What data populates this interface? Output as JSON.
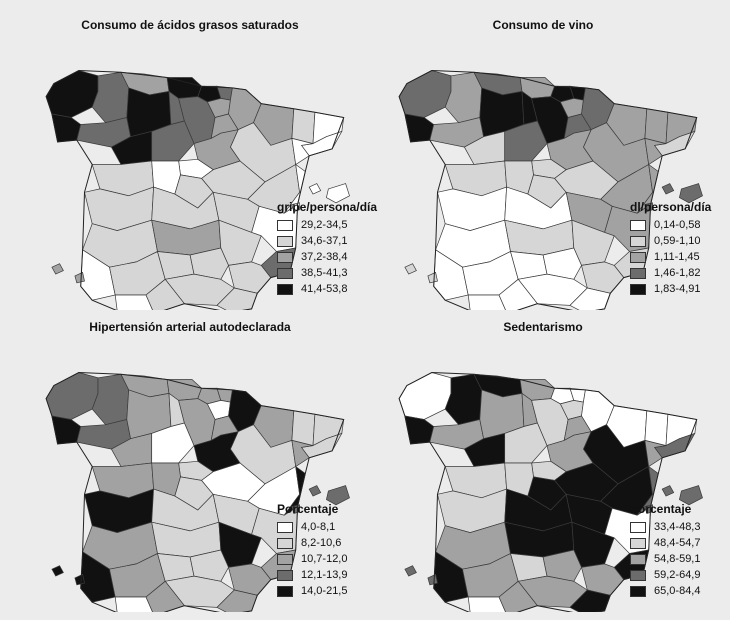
{
  "class_colors": [
    "#ffffff",
    "#d6d6d6",
    "#a2a2a2",
    "#6c6c6c",
    "#111111"
  ],
  "maps": [
    {
      "title": "Consumo de ácidos grasos saturados",
      "legend_title": "gripe/persona/día",
      "legend": [
        "29,2-34,5",
        "34,6-37,1",
        "37,2-38,4",
        "38,5-41,3",
        "41,4-53,8"
      ],
      "classes": {
        "coruna": 4,
        "lugo": 3,
        "asturias": 2,
        "cantabria": 4,
        "bizkaia": 4,
        "gipuzkoa": 3,
        "navarra": 2,
        "huesca": 2,
        "girona": 0,
        "lleida": 1,
        "barcelona": 0,
        "pontevedra": 4,
        "ourense": 3,
        "leon": 4,
        "palencia": 3,
        "burgos": 3,
        "alava": 2,
        "larioja": 2,
        "zaragoza": 1,
        "tarragona": 0,
        "zamora": 4,
        "valladolid": 3,
        "soria": 2,
        "salamanca": 1,
        "segovia": 0,
        "avila": 0,
        "madrid": 1,
        "guadalajara": 1,
        "teruel": 1,
        "castellon": 0,
        "caceres": 1,
        "toledo": 1,
        "cuenca": 1,
        "valencia": 0,
        "badajoz": 1,
        "ciudadreal": 2,
        "albacete": 1,
        "alicante": 3,
        "huelva": 0,
        "sevilla": 1,
        "cordoba": 1,
        "jaen": 1,
        "murcia": 1,
        "granada": 1,
        "almeria": 1,
        "cadiz": 0,
        "malaga": 1,
        "baleares": 0,
        "canarias": 2
      }
    },
    {
      "title": "Consumo de vino",
      "legend_title": "dl/persona/día",
      "legend": [
        "0,14-0,58",
        "0,59-1,10",
        "1,11-1,45",
        "1,46-1,82",
        "1,83-4,91"
      ],
      "classes": {
        "coruna": 3,
        "lugo": 2,
        "asturias": 3,
        "cantabria": 2,
        "bizkaia": 4,
        "gipuzkoa": 4,
        "navarra": 3,
        "huesca": 2,
        "girona": 2,
        "lleida": 2,
        "barcelona": 1,
        "pontevedra": 4,
        "ourense": 2,
        "leon": 4,
        "palencia": 4,
        "burgos": 4,
        "alava": 2,
        "larioja": 3,
        "zaragoza": 2,
        "tarragona": 2,
        "zamora": 1,
        "valladolid": 3,
        "soria": 2,
        "salamanca": 1,
        "segovia": 1,
        "avila": 1,
        "madrid": 1,
        "guadalajara": 1,
        "teruel": 2,
        "castellon": 2,
        "caceres": 0,
        "toledo": 0,
        "cuenca": 2,
        "valencia": 2,
        "badajoz": 0,
        "ciudadreal": 1,
        "albacete": 1,
        "alicante": 1,
        "huelva": 0,
        "sevilla": 0,
        "cordoba": 0,
        "jaen": 0,
        "murcia": 1,
        "granada": 0,
        "almeria": 0,
        "cadiz": 0,
        "malaga": 0,
        "baleares": 3,
        "canarias": 1
      }
    },
    {
      "title": "Hipertensión arterial autodeclarada",
      "legend_title": "Porcentaje",
      "legend": [
        "4,0-8,1",
        "8,2-10,6",
        "10,7-12,0",
        "12,1-13,9",
        "14,0-21,5"
      ],
      "classes": {
        "coruna": 3,
        "lugo": 3,
        "asturias": 2,
        "cantabria": 2,
        "bizkaia": 2,
        "gipuzkoa": 2,
        "navarra": 4,
        "huesca": 2,
        "girona": 1,
        "lleida": 1,
        "barcelona": 1,
        "pontevedra": 4,
        "ourense": 3,
        "leon": 2,
        "palencia": 1,
        "burgos": 2,
        "alava": 0,
        "larioja": 2,
        "zaragoza": 1,
        "tarragona": 2,
        "zamora": 2,
        "valladolid": 0,
        "soria": 4,
        "salamanca": 2,
        "segovia": 1,
        "avila": 2,
        "madrid": 1,
        "guadalajara": 0,
        "teruel": 0,
        "castellon": 4,
        "caceres": 4,
        "toledo": 1,
        "cuenca": 1,
        "valencia": 1,
        "badajoz": 2,
        "ciudadreal": 1,
        "albacete": 4,
        "alicante": 2,
        "huelva": 4,
        "sevilla": 2,
        "cordoba": 1,
        "jaen": 1,
        "murcia": 2,
        "granada": 1,
        "almeria": 2,
        "cadiz": 0,
        "malaga": 2,
        "baleares": 3,
        "canarias": 4
      }
    },
    {
      "title": "Sedentarismo",
      "legend_title": "Porcentaje",
      "legend": [
        "33,4-48,3",
        "48,4-54,7",
        "54,8-59,1",
        "59,2-64,9",
        "65,0-84,4"
      ],
      "classes": {
        "coruna": 0,
        "lugo": 4,
        "asturias": 4,
        "cantabria": 2,
        "bizkaia": 0,
        "gipuzkoa": 0,
        "navarra": 0,
        "huesca": 0,
        "girona": 0,
        "lleida": 0,
        "barcelona": 3,
        "pontevedra": 4,
        "ourense": 2,
        "leon": 2,
        "palencia": 2,
        "burgos": 1,
        "alava": 1,
        "larioja": 2,
        "zaragoza": 4,
        "tarragona": 2,
        "zamora": 4,
        "valladolid": 1,
        "soria": 2,
        "salamanca": 1,
        "segovia": 1,
        "avila": 1,
        "madrid": 4,
        "guadalajara": 4,
        "teruel": 4,
        "castellon": 3,
        "caceres": 1,
        "toledo": 4,
        "cuenca": 4,
        "valencia": 0,
        "badajoz": 2,
        "ciudadreal": 4,
        "albacete": 4,
        "alicante": 4,
        "huelva": 4,
        "sevilla": 2,
        "cordoba": 1,
        "jaen": 2,
        "murcia": 2,
        "granada": 2,
        "almeria": 4,
        "cadiz": 0,
        "malaga": 2,
        "baleares": 3,
        "canarias": 3
      }
    }
  ]
}
